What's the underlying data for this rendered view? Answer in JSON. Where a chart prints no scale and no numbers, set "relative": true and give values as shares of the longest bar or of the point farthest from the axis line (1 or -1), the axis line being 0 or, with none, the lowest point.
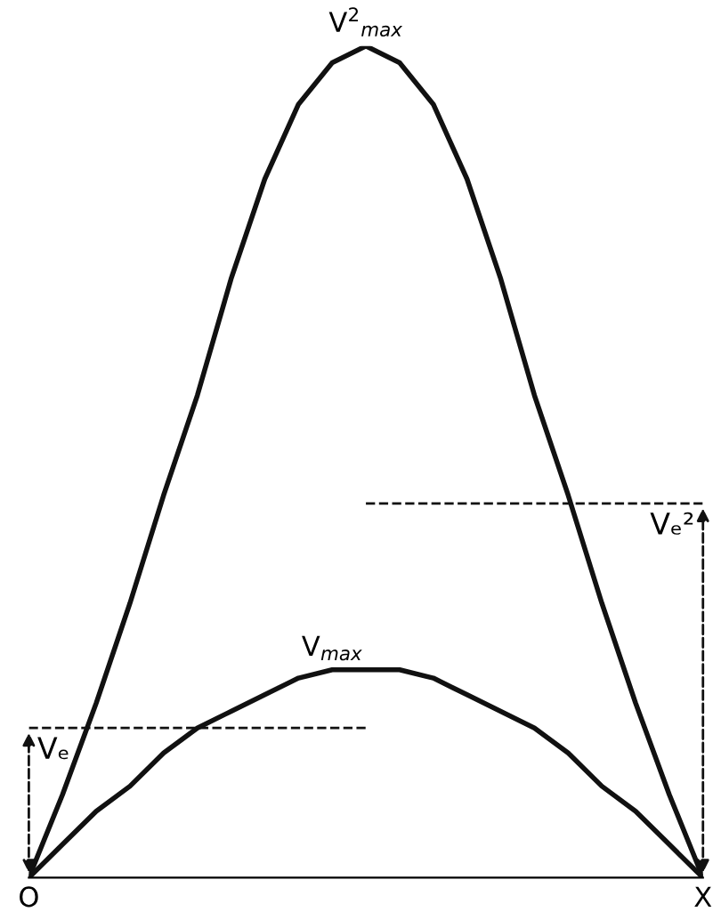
{
  "chart_data": {
    "type": "line",
    "relative": true,
    "line_style": "solid",
    "marker": "none",
    "legend": false,
    "categories": [
      null,
      null,
      null,
      null,
      null,
      null,
      null,
      null,
      null,
      null,
      null,
      null,
      null,
      null,
      null,
      null,
      null,
      null,
      null,
      null,
      null
    ],
    "series": [
      {
        "color": "#111111",
        "values": [
          0,
          0.1,
          0.21,
          0.33,
          0.46,
          0.58,
          0.72,
          0.84,
          0.93,
          0.98,
          1,
          0.98,
          0.93,
          0.84,
          0.72,
          0.58,
          0.46,
          0.33,
          0.21,
          0.1,
          0
        ]
      },
      {
        "color": "#111111",
        "values": [
          0,
          0.04,
          0.08,
          0.11,
          0.15,
          0.18,
          0.2,
          0.22,
          0.24,
          0.25,
          0.25,
          0.25,
          0.24,
          0.22,
          0.2,
          0.18,
          0.15,
          0.11,
          0.08,
          0.04,
          0
        ]
      }
    ],
    "ref_lines": [
      {
        "axis": "y",
        "value": 0.18,
        "label": "Vₑ",
        "line_style": "dashed",
        "color": "#111111"
      },
      {
        "axis": "y",
        "value": 0.45,
        "label": "Vₑ²",
        "line_style": "dashed",
        "color": "#111111"
      }
    ],
    "annotations": [
      "V$^{2}$$_{max}$",
      "V$_{max}$",
      "O",
      "X"
    ]
  }
}
